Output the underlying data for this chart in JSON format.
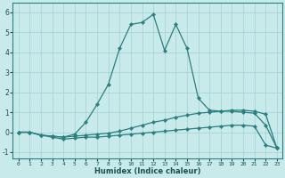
{
  "xlabel": "Humidex (Indice chaleur)",
  "x_values": [
    0,
    1,
    2,
    3,
    4,
    5,
    6,
    7,
    8,
    9,
    10,
    11,
    12,
    13,
    14,
    15,
    16,
    17,
    18,
    19,
    20,
    21,
    22,
    23
  ],
  "line_main": [
    0.0,
    0.0,
    -0.15,
    -0.2,
    -0.25,
    -0.1,
    0.5,
    1.4,
    2.4,
    4.2,
    5.4,
    5.5,
    5.9,
    4.1,
    5.4,
    4.2,
    1.7,
    1.1,
    1.05,
    1.05,
    1.0,
    0.95,
    0.35,
    -0.8
  ],
  "line_mid": [
    0.0,
    0.0,
    -0.15,
    -0.2,
    -0.25,
    -0.2,
    -0.15,
    -0.1,
    -0.05,
    0.05,
    0.2,
    0.35,
    0.5,
    0.6,
    0.75,
    0.85,
    0.95,
    1.0,
    1.05,
    1.1,
    1.1,
    1.05,
    0.9,
    -0.8
  ],
  "line_bot": [
    0.0,
    0.0,
    -0.15,
    -0.25,
    -0.35,
    -0.3,
    -0.25,
    -0.25,
    -0.2,
    -0.15,
    -0.1,
    -0.05,
    0.0,
    0.05,
    0.1,
    0.15,
    0.2,
    0.25,
    0.3,
    0.35,
    0.35,
    0.3,
    -0.65,
    -0.8
  ],
  "line_color": "#2a7f7f",
  "bg_color": "#c8eaea",
  "grid_color": "#aad4d4",
  "ylim": [
    -1.3,
    6.5
  ],
  "xlim": [
    -0.5,
    23.5
  ]
}
